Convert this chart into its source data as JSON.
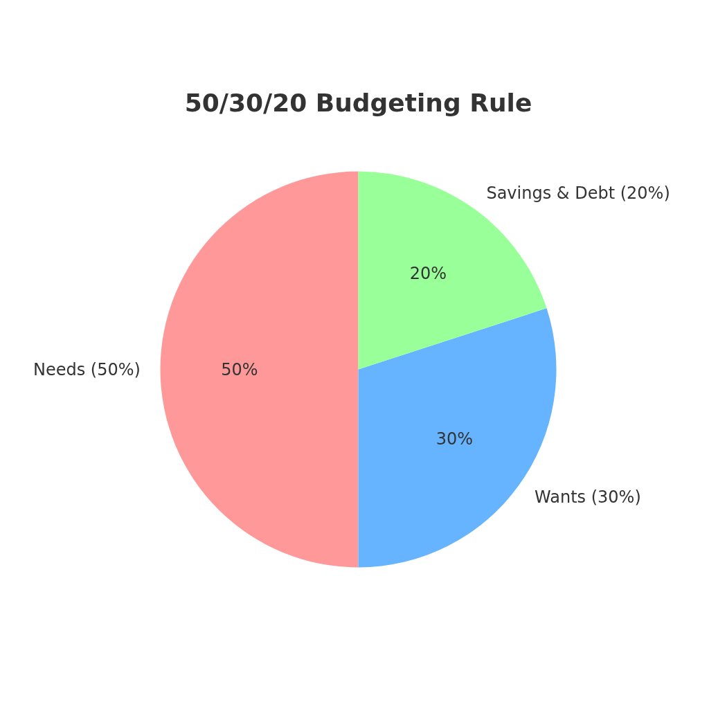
{
  "chart_data": {
    "type": "pie",
    "title": "50/30/20 Budgeting Rule",
    "categories": [
      "Needs (50%)",
      "Wants (30%)",
      "Savings & Debt (20%)"
    ],
    "values": [
      50,
      30,
      20
    ],
    "colors": [
      "#ff9999",
      "#66b3ff",
      "#99ff99"
    ],
    "value_labels": [
      "50%",
      "30%",
      "20%"
    ]
  }
}
